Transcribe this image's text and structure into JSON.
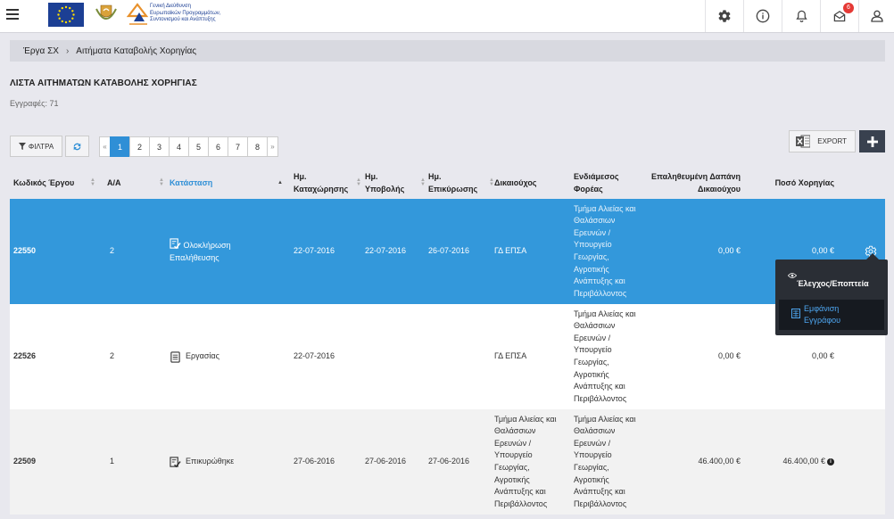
{
  "topbar": {
    "gd_logo_lines": [
      "Γενική Διεύθυνση",
      "Ευρωπαϊκών Προγραμμάτων,",
      "Συντονισμού και Ανάπτυξης"
    ],
    "icons": [
      "settings-icon",
      "info-icon",
      "bell-icon",
      "mail-icon",
      "user-icon"
    ],
    "notification_count": "6"
  },
  "breadcrumb": {
    "items": [
      "Έργα ΣΧ",
      "Αιτήματα Καταβολής Χορηγίας"
    ]
  },
  "page": {
    "title": "ΛΙΣΤΑ ΑΙΤΗΜΑΤΩΝ ΚΑΤΑΒΟΛΗΣ ΧΟΡΗΓΙΑΣ",
    "records": "Εγγραφές: 71"
  },
  "toolbar": {
    "filter_label": "ΦΙΛΤΡΑ",
    "export_label": "EXPORT"
  },
  "pagination": {
    "prev": "«",
    "next": "»",
    "pages": [
      "1",
      "2",
      "3",
      "4",
      "5",
      "6",
      "7",
      "8"
    ],
    "current": "1"
  },
  "table": {
    "headers": {
      "code": "Κωδικός Έργου",
      "aa": "Α/Α",
      "status": "Κατάσταση",
      "reg_date_1": "Ημ.",
      "reg_date_2": "Καταχώρησης",
      "sub_date_1": "Ημ.",
      "sub_date_2": "Υποβολής",
      "ver_date_1": "Ημ.",
      "ver_date_2": "Επικύρωσης",
      "beneficiary": "Δικαιούχος",
      "intermediate_1": "Ενδιάμεσος",
      "intermediate_2": "Φορέας",
      "verified_1": "Επαληθευμένη Δαπάνη",
      "verified_2": "Δικαιούχου",
      "amount": "Ποσό Χορηγίας"
    },
    "rows": [
      {
        "code": "22550",
        "aa": "2",
        "status": "Ολοκλήρωση Επαλήθευσης",
        "reg_date": "22-07-2016",
        "sub_date": "22-07-2016",
        "ver_date": "26-07-2016",
        "beneficiary": "ΓΔ ΕΠΣΑ",
        "intermediate": "Τμήμα Αλιείας και Θαλάσσιων Ερευνών / Υπουργείο Γεωργίας, Αγροτικής Ανάπτυξης και Περιβάλλοντος",
        "verified": "0,00 €",
        "amount": "0,00 €"
      },
      {
        "code": "22526",
        "aa": "2",
        "status": "Εργασίας",
        "reg_date": "22-07-2016",
        "sub_date": "",
        "ver_date": "",
        "beneficiary": "ΓΔ ΕΠΣΑ",
        "intermediate": "Τμήμα Αλιείας και Θαλάσσιων Ερευνών / Υπουργείο Γεωργίας, Αγροτικής Ανάπτυξης και Περιβάλλοντος",
        "verified": "0,00 €",
        "amount": "0,00 €"
      },
      {
        "code": "22509",
        "aa": "1",
        "status": "Επικυρώθηκε",
        "reg_date": "27-06-2016",
        "sub_date": "27-06-2016",
        "ver_date": "27-06-2016",
        "beneficiary": "Τμήμα Αλιείας και Θαλάσσιων Ερευνών / Υπουργείο Γεωργίας, Αγροτικής Ανάπτυξης και Περιβάλλοντος",
        "intermediate": "Τμήμα Αλιείας και Θαλάσσιων Ερευνών / Υπουργείο Γεωργίας, Αγροτικής Ανάπτυξης και Περιβάλλοντος",
        "verified": "46.400,00 €",
        "amount": "46.400,00 €"
      }
    ]
  },
  "action_menu": {
    "header": "Έλεγχος/Εποπτεία",
    "item_line1": "Εμφάνιση",
    "item_line2": "Εγγράφου"
  },
  "colors": {
    "selected_row": "#3398db",
    "active_page": "#2f8fd6",
    "menu_bg": "#2a2e35",
    "menu_link": "#4ea6f0",
    "badge": "#e53935"
  }
}
